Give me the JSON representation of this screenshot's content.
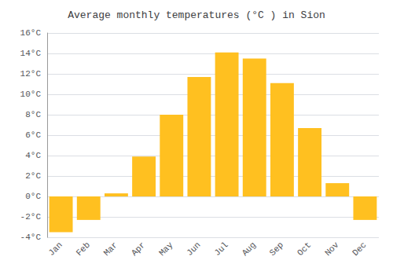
{
  "chart_data": {
    "type": "bar",
    "title": "Average monthly temperatures (°C ) in Sion",
    "categories": [
      "Jan",
      "Feb",
      "Mar",
      "Apr",
      "May",
      "Jun",
      "Jul",
      "Aug",
      "Sep",
      "Oct",
      "Nov",
      "Dec"
    ],
    "values": [
      -3.5,
      -2.3,
      0.3,
      3.9,
      8.0,
      11.7,
      14.1,
      13.5,
      11.1,
      6.7,
      1.3,
      -2.3
    ],
    "color": "#FFC020",
    "ylim": [
      -4,
      16
    ],
    "yticks": [
      {
        "value": -4,
        "label": "-4°C"
      },
      {
        "value": -2,
        "label": "-2°C"
      },
      {
        "value": 0,
        "label": "0°C"
      },
      {
        "value": 2,
        "label": "2°C"
      },
      {
        "value": 4,
        "label": "4°C"
      },
      {
        "value": 6,
        "label": "6°C"
      },
      {
        "value": 8,
        "label": "8°C"
      },
      {
        "value": 10,
        "label": "10°C"
      },
      {
        "value": 12,
        "label": "12°C"
      },
      {
        "value": 14,
        "label": "14°C"
      },
      {
        "value": 16,
        "label": "16°C"
      }
    ],
    "grid": true
  }
}
